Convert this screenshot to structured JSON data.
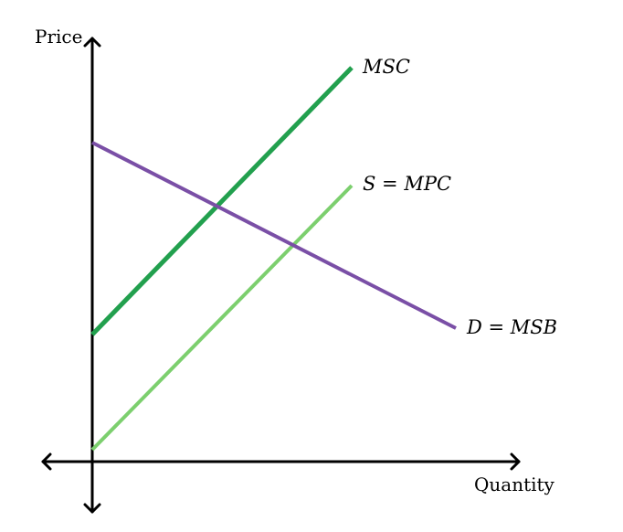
{
  "diagram": {
    "axes": {
      "x_label": "Quantity",
      "y_label": "Price"
    },
    "curves": [
      {
        "id": "msc",
        "label": "MSC",
        "color": "#22a04e"
      },
      {
        "id": "mpc",
        "label": "S = MPC",
        "color": "#7ccf6e"
      },
      {
        "id": "msb",
        "label": "D = MSB",
        "color": "#7a4fa6"
      }
    ],
    "colors": {
      "axis": "#000000",
      "background": "#ffffff"
    }
  }
}
